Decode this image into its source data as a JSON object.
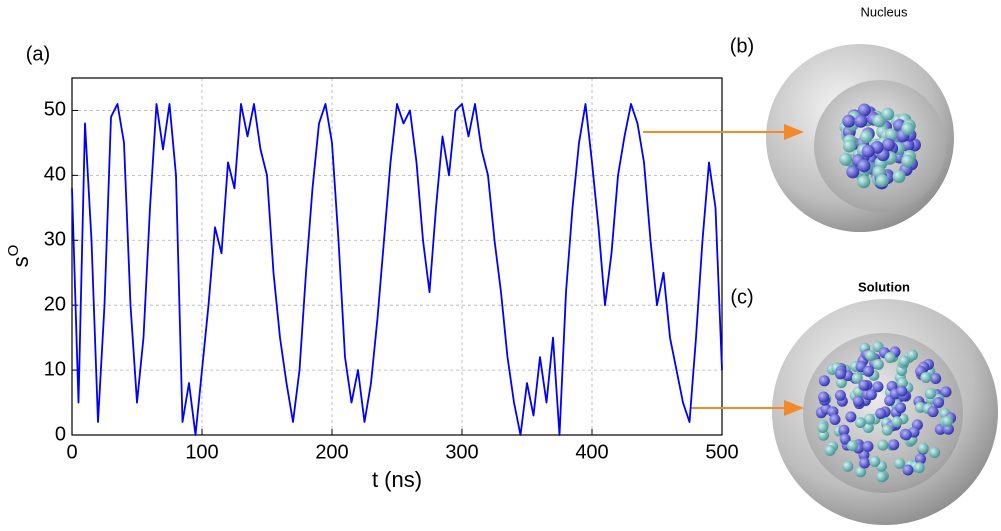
{
  "chart_data": {
    "type": "line",
    "x_label": "t (ns)",
    "y_label": "s",
    "y_label_superscript": "O",
    "panel_labels": [
      "(a)",
      "(b)",
      "(c)"
    ],
    "inset_titles": [
      "Nucleus",
      "Solution"
    ],
    "xlim": [
      0,
      500
    ],
    "ylim": [
      0,
      55
    ],
    "xticks": [
      0,
      100,
      200,
      300,
      400,
      500
    ],
    "yticks": [
      0,
      10,
      20,
      30,
      40,
      50
    ],
    "grid": true,
    "x": [
      0,
      5,
      10,
      15,
      20,
      25,
      30,
      35,
      40,
      45,
      50,
      55,
      60,
      65,
      70,
      75,
      80,
      85,
      90,
      95,
      100,
      105,
      110,
      115,
      120,
      125,
      130,
      135,
      140,
      145,
      150,
      155,
      160,
      165,
      170,
      175,
      180,
      185,
      190,
      195,
      200,
      205,
      210,
      215,
      220,
      225,
      230,
      235,
      240,
      245,
      250,
      255,
      260,
      265,
      270,
      275,
      280,
      285,
      290,
      295,
      300,
      305,
      310,
      315,
      320,
      325,
      330,
      335,
      340,
      345,
      350,
      355,
      360,
      365,
      370,
      375,
      380,
      385,
      390,
      395,
      400,
      405,
      410,
      415,
      420,
      425,
      430,
      435,
      440,
      445,
      450,
      455,
      460,
      465,
      470,
      475,
      480,
      485,
      490,
      495,
      500
    ],
    "series": [
      {
        "color": "#0000ff",
        "values": [
          38,
          5,
          48,
          30,
          2,
          20,
          49,
          51,
          45,
          20,
          5,
          15,
          35,
          51,
          44,
          51,
          40,
          2,
          8,
          0,
          10,
          20,
          32,
          28,
          42,
          38,
          51,
          46,
          51,
          44,
          40,
          25,
          15,
          8,
          2,
          10,
          25,
          38,
          48,
          51,
          45,
          30,
          12,
          5,
          10,
          2,
          8,
          18,
          30,
          42,
          51,
          48,
          50,
          42,
          30,
          22,
          35,
          46,
          40,
          50,
          51,
          46,
          51,
          44,
          40,
          30,
          22,
          12,
          5,
          0,
          8,
          3,
          12,
          5,
          15,
          0,
          22,
          35,
          45,
          51,
          42,
          32,
          20,
          28,
          40,
          46,
          51,
          48,
          42,
          30,
          20,
          25,
          15,
          10,
          5,
          2,
          15,
          30,
          42,
          35,
          10
        ]
      }
    ]
  }
}
